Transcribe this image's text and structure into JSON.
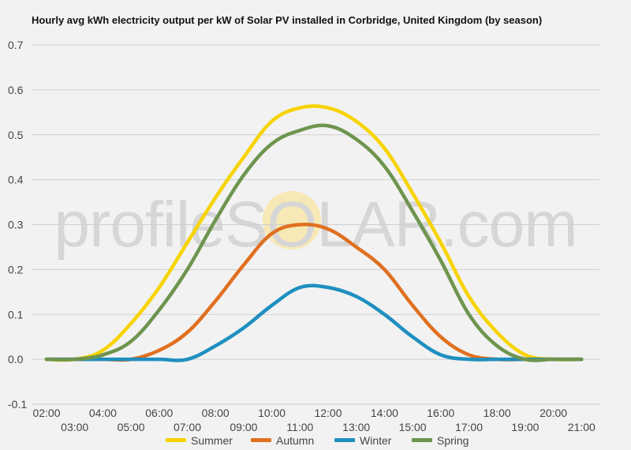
{
  "chart_data": {
    "type": "line",
    "title": "Hourly avg kWh electricity output per kW of Solar PV installed in Corbridge, United Kingdom (by season)",
    "xlabel": "",
    "ylabel": "",
    "x": [
      "02:00",
      "03:00",
      "04:00",
      "05:00",
      "06:00",
      "07:00",
      "08:00",
      "09:00",
      "10:00",
      "11:00",
      "12:00",
      "13:00",
      "14:00",
      "15:00",
      "16:00",
      "17:00",
      "18:00",
      "19:00",
      "20:00",
      "21:00"
    ],
    "ylim": [
      -0.1,
      0.7
    ],
    "yticks": [
      "-0.1",
      "0.0",
      "0.1",
      "0.2",
      "0.3",
      "0.4",
      "0.5",
      "0.6",
      "0.7"
    ],
    "grid": true,
    "legend_position": "bottom",
    "series": [
      {
        "name": "Summer",
        "color": "#f7d300",
        "values": [
          0.0,
          0.0,
          0.02,
          0.08,
          0.16,
          0.26,
          0.36,
          0.45,
          0.53,
          0.56,
          0.56,
          0.53,
          0.47,
          0.37,
          0.26,
          0.14,
          0.06,
          0.01,
          0.0,
          0.0
        ]
      },
      {
        "name": "Autumn",
        "color": "#e07020",
        "values": [
          0.0,
          0.0,
          0.0,
          0.0,
          0.02,
          0.06,
          0.13,
          0.21,
          0.28,
          0.3,
          0.29,
          0.25,
          0.2,
          0.12,
          0.05,
          0.01,
          0.0,
          0.0,
          0.0,
          0.0
        ]
      },
      {
        "name": "Winter",
        "color": "#1f8fc0",
        "values": [
          0.0,
          0.0,
          0.0,
          0.0,
          0.0,
          0.0,
          0.03,
          0.07,
          0.12,
          0.16,
          0.16,
          0.14,
          0.1,
          0.05,
          0.01,
          0.0,
          0.0,
          0.0,
          0.0,
          0.0
        ]
      },
      {
        "name": "Spring",
        "color": "#6e944e",
        "values": [
          0.0,
          0.0,
          0.01,
          0.04,
          0.11,
          0.2,
          0.31,
          0.41,
          0.48,
          0.51,
          0.52,
          0.49,
          0.43,
          0.33,
          0.22,
          0.1,
          0.03,
          0.0,
          0.0,
          0.0
        ]
      }
    ]
  },
  "watermark": {
    "text": "profileSOLAR.com",
    "sun_color": "#f7e6a0"
  }
}
